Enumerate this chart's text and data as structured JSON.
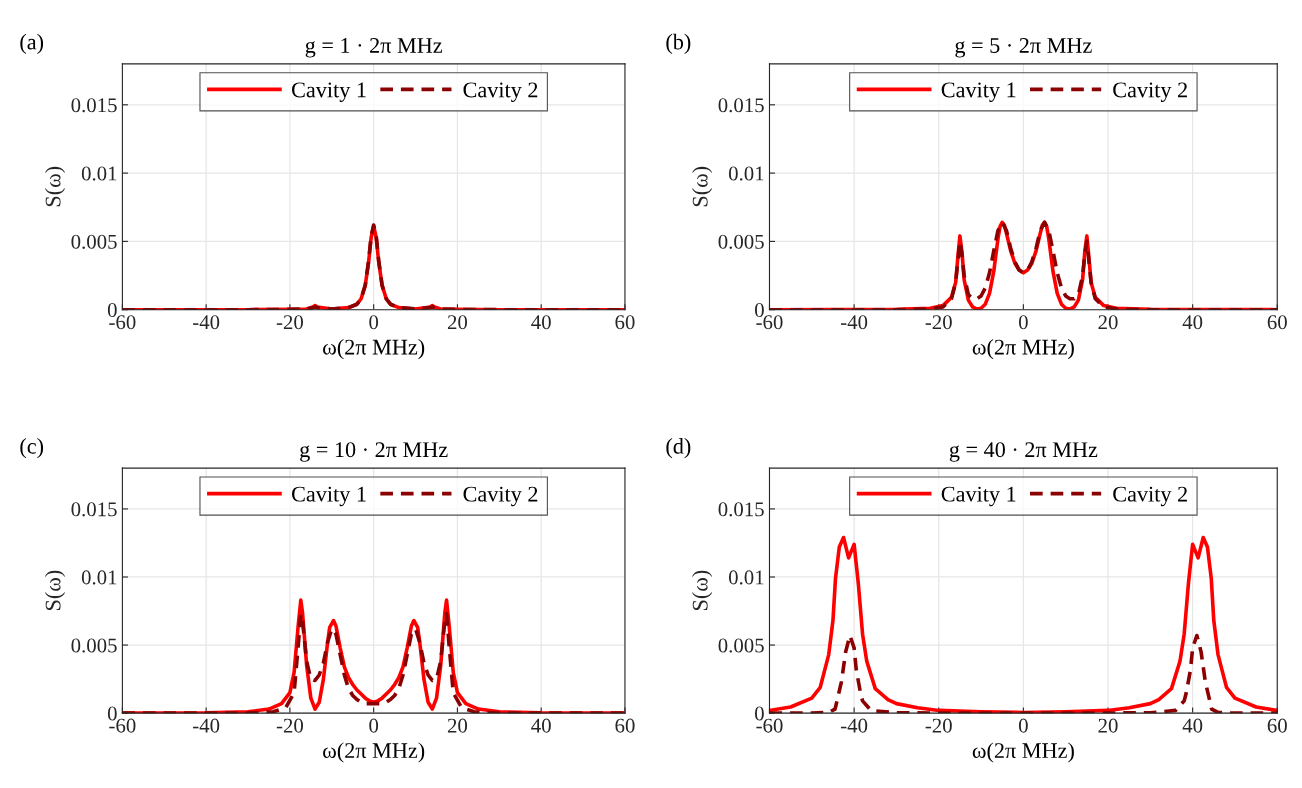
{
  "chart_data": [
    {
      "type": "line",
      "title": "g = 1 · 2π MHz",
      "xlabel": "ω(2π MHz)",
      "ylabel": "S(ω)",
      "annotations": [
        "(a)"
      ],
      "xlim": [
        -60,
        60
      ],
      "ylim": [
        0,
        0.018
      ],
      "xticks": [
        -60,
        -40,
        -20,
        0,
        20,
        40,
        60
      ],
      "yticks": [
        0,
        0.005,
        0.01,
        0.015
      ],
      "grid": true,
      "legend": "top",
      "series": [
        {
          "name": "Cavity 1",
          "color": "#ff0000",
          "line_style": "solid",
          "x": [
            -60,
            -30,
            -20,
            -16,
            -14.5,
            -14,
            -13.5,
            -10,
            -6,
            -4,
            -3,
            -2,
            -1.2,
            -0.6,
            0,
            0.6,
            1.2,
            2,
            3,
            4,
            6,
            10,
            13.5,
            14,
            14.5,
            16,
            20,
            30,
            60
          ],
          "values": [
            0,
            0,
            2e-05,
            5e-05,
            0.0002,
            0.0003,
            0.0002,
            5e-05,
            0.00015,
            0.0004,
            0.0008,
            0.0018,
            0.0035,
            0.0053,
            0.0061,
            0.0053,
            0.0035,
            0.0018,
            0.0008,
            0.0004,
            0.00015,
            5e-05,
            0.0002,
            0.0003,
            0.0002,
            5e-05,
            2e-05,
            0,
            0
          ]
        },
        {
          "name": "Cavity 2",
          "color": "#8b0000",
          "line_style": "dashed",
          "x": [
            -60,
            -30,
            -20,
            -16,
            -14.5,
            -14,
            -13.5,
            -10,
            -6,
            -4,
            -3,
            -2,
            -1.2,
            -0.6,
            0,
            0.6,
            1.2,
            2,
            3,
            4,
            6,
            10,
            13.5,
            14,
            14.5,
            16,
            20,
            30,
            60
          ],
          "values": [
            0,
            0,
            2e-05,
            5e-05,
            0.00015,
            0.0002,
            0.00015,
            5e-05,
            0.00015,
            0.0004,
            0.0008,
            0.0018,
            0.0036,
            0.0054,
            0.0062,
            0.0054,
            0.0036,
            0.0018,
            0.0008,
            0.0004,
            0.00015,
            5e-05,
            0.00015,
            0.0002,
            0.00015,
            5e-05,
            2e-05,
            0,
            0
          ]
        }
      ]
    },
    {
      "type": "line",
      "title": "g = 5 · 2π MHz",
      "xlabel": "ω(2π MHz)",
      "ylabel": "S(ω)",
      "annotations": [
        "(b)"
      ],
      "xlim": [
        -60,
        60
      ],
      "ylim": [
        0,
        0.018
      ],
      "xticks": [
        -60,
        -40,
        -20,
        0,
        20,
        40,
        60
      ],
      "yticks": [
        0,
        0.005,
        0.01,
        0.015
      ],
      "grid": true,
      "legend": "top",
      "series": [
        {
          "name": "Cavity 1",
          "color": "#ff0000",
          "line_style": "solid",
          "x": [
            -60,
            -30,
            -22,
            -19,
            -17,
            -16,
            -15.5,
            -15,
            -14.5,
            -14,
            -13,
            -12,
            -11,
            -10,
            -9,
            -8,
            -7,
            -6,
            -5.5,
            -5,
            -4.5,
            -4,
            -3,
            -2,
            -1,
            0,
            1,
            2,
            3,
            4,
            4.5,
            5,
            5.5,
            6,
            7,
            8,
            9,
            10,
            11,
            12,
            13,
            14,
            14.5,
            15,
            15.5,
            16,
            17,
            19,
            22,
            30,
            60
          ],
          "values": [
            0,
            2e-05,
            0.0001,
            0.0003,
            0.0009,
            0.002,
            0.0038,
            0.0054,
            0.0042,
            0.0022,
            0.0007,
            0.0002,
            5e-05,
            0.0001,
            0.0004,
            0.0012,
            0.0028,
            0.0052,
            0.0061,
            0.0064,
            0.0062,
            0.0056,
            0.0043,
            0.0034,
            0.0029,
            0.0027,
            0.0029,
            0.0034,
            0.0043,
            0.0056,
            0.0062,
            0.0064,
            0.0061,
            0.0052,
            0.0028,
            0.0012,
            0.0004,
            0.0001,
            5e-05,
            0.0002,
            0.0007,
            0.0022,
            0.0042,
            0.0054,
            0.0038,
            0.002,
            0.0009,
            0.0003,
            0.0001,
            2e-05,
            0
          ]
        },
        {
          "name": "Cavity 2",
          "color": "#8b0000",
          "line_style": "dashed",
          "x": [
            -60,
            -30,
            -22,
            -19,
            -17,
            -16,
            -15,
            -14.5,
            -14,
            -13,
            -12,
            -11,
            -10,
            -9,
            -8,
            -7,
            -6,
            -5,
            -4,
            -3,
            -2,
            -1,
            0,
            1,
            2,
            3,
            4,
            5,
            6,
            7,
            8,
            9,
            10,
            11,
            12,
            13,
            14,
            14.5,
            15,
            16,
            17,
            19,
            22,
            30,
            60
          ],
          "values": [
            0,
            0,
            5e-05,
            0.0002,
            0.0008,
            0.002,
            0.005,
            0.004,
            0.0025,
            0.0011,
            0.0008,
            0.0008,
            0.001,
            0.0016,
            0.0027,
            0.0043,
            0.0058,
            0.0064,
            0.0058,
            0.0045,
            0.0035,
            0.0029,
            0.0027,
            0.0029,
            0.0035,
            0.0045,
            0.0058,
            0.0064,
            0.0058,
            0.0043,
            0.0027,
            0.0016,
            0.001,
            0.0008,
            0.0008,
            0.0011,
            0.0025,
            0.004,
            0.005,
            0.002,
            0.0008,
            0.0002,
            5e-05,
            0,
            0
          ]
        }
      ]
    },
    {
      "type": "line",
      "title": "g = 10 · 2π MHz",
      "xlabel": "ω(2π MHz)",
      "ylabel": "S(ω)",
      "annotations": [
        "(c)"
      ],
      "xlim": [
        -60,
        60
      ],
      "ylim": [
        0,
        0.018
      ],
      "xticks": [
        -60,
        -40,
        -20,
        0,
        20,
        40,
        60
      ],
      "yticks": [
        0,
        0.005,
        0.01,
        0.015
      ],
      "grid": true,
      "legend": "top",
      "series": [
        {
          "name": "Cavity 1",
          "color": "#ff0000",
          "line_style": "solid",
          "x": [
            -60,
            -40,
            -30,
            -25,
            -22,
            -20,
            -19,
            -18,
            -17.4,
            -17,
            -16,
            -15,
            -14,
            -13,
            -12,
            -11,
            -10.5,
            -9.6,
            -9,
            -8,
            -7,
            -6,
            -5,
            -4,
            -3,
            -2,
            -1,
            0,
            1,
            2,
            3,
            4,
            5,
            6,
            7,
            8,
            9,
            9.6,
            10.5,
            11,
            12,
            13,
            14,
            15,
            16,
            17,
            17.4,
            18,
            19,
            20,
            22,
            25,
            30,
            40,
            60
          ],
          "values": [
            0,
            2e-05,
            0.0001,
            0.0003,
            0.0007,
            0.0015,
            0.003,
            0.0065,
            0.0083,
            0.0074,
            0.0035,
            0.0011,
            0.0003,
            0.0008,
            0.0025,
            0.0052,
            0.0063,
            0.0068,
            0.0064,
            0.0048,
            0.0034,
            0.0026,
            0.0021,
            0.0017,
            0.0014,
            0.0011,
            0.0009,
            0.0008,
            0.0009,
            0.0011,
            0.0014,
            0.0017,
            0.0021,
            0.0026,
            0.0034,
            0.0048,
            0.0064,
            0.0068,
            0.0063,
            0.0052,
            0.0025,
            0.0008,
            0.0003,
            0.0011,
            0.0035,
            0.0074,
            0.0083,
            0.0065,
            0.003,
            0.0015,
            0.0007,
            0.0003,
            0.0001,
            2e-05,
            0
          ]
        },
        {
          "name": "Cavity 2",
          "color": "#8b0000",
          "line_style": "dashed",
          "x": [
            -60,
            -30,
            -24,
            -21,
            -19,
            -18,
            -17.4,
            -17,
            -16,
            -15,
            -14,
            -13,
            -12,
            -11,
            -10,
            -9,
            -8,
            -7,
            -6,
            -5,
            -4,
            -3,
            -2,
            -1,
            0,
            1,
            2,
            3,
            4,
            5,
            6,
            7,
            8,
            9,
            10,
            11,
            12,
            13,
            14,
            15,
            16,
            17,
            17.4,
            18,
            19,
            21,
            24,
            30,
            60
          ],
          "values": [
            0,
            0,
            0.0001,
            0.0004,
            0.0015,
            0.005,
            0.0073,
            0.0068,
            0.0038,
            0.0025,
            0.0024,
            0.0028,
            0.0037,
            0.0052,
            0.0062,
            0.0058,
            0.0043,
            0.0028,
            0.0018,
            0.0013,
            0.001,
            0.0008,
            0.0007,
            0.0007,
            0.0007,
            0.0007,
            0.0007,
            0.0008,
            0.001,
            0.0013,
            0.0018,
            0.0028,
            0.0043,
            0.0058,
            0.0062,
            0.0052,
            0.0037,
            0.0028,
            0.0024,
            0.0025,
            0.0038,
            0.0068,
            0.0073,
            0.005,
            0.0015,
            0.0004,
            0.0001,
            0,
            0
          ]
        }
      ]
    },
    {
      "type": "line",
      "title": "g = 40 · 2π MHz",
      "xlabel": "ω(2π MHz)",
      "ylabel": "S(ω)",
      "annotations": [
        "(d)"
      ],
      "xlim": [
        -60,
        60
      ],
      "ylim": [
        0,
        0.018
      ],
      "xticks": [
        -60,
        -40,
        -20,
        0,
        20,
        40,
        60
      ],
      "yticks": [
        0,
        0.005,
        0.01,
        0.015
      ],
      "grid": true,
      "legend": "top",
      "series": [
        {
          "name": "Cavity 1",
          "color": "#ff0000",
          "line_style": "solid",
          "x": [
            -60,
            -55,
            -50,
            -48,
            -46,
            -45,
            -44.4,
            -43.5,
            -42.5,
            -41.3,
            -40,
            -39,
            -38,
            -37,
            -35,
            -32,
            -30,
            -25,
            -20,
            -10,
            0,
            10,
            20,
            25,
            30,
            32,
            35,
            37,
            38,
            39,
            40,
            41.3,
            42.5,
            43.5,
            44.4,
            45,
            46,
            48,
            50,
            55,
            60
          ],
          "values": [
            0.0002,
            0.00045,
            0.0011,
            0.0019,
            0.0043,
            0.0068,
            0.0099,
            0.0122,
            0.0129,
            0.0114,
            0.0124,
            0.0095,
            0.0058,
            0.0038,
            0.0018,
            0.001,
            0.0007,
            0.0004,
            0.0002,
            0.0001,
            5e-05,
            0.0001,
            0.0002,
            0.0004,
            0.0007,
            0.001,
            0.0018,
            0.0038,
            0.0058,
            0.0095,
            0.0124,
            0.0114,
            0.0129,
            0.0122,
            0.0099,
            0.0068,
            0.0043,
            0.0019,
            0.0011,
            0.00045,
            0.0002
          ]
        },
        {
          "name": "Cavity 2",
          "color": "#8b0000",
          "line_style": "dashed",
          "x": [
            -60,
            -50,
            -46,
            -44.5,
            -43,
            -42,
            -41,
            -40,
            -39.5,
            -38.5,
            -38,
            -36,
            -30,
            0,
            30,
            36,
            38,
            38.5,
            39.5,
            40,
            41,
            42,
            43,
            44.5,
            46,
            50,
            60
          ],
          "values": [
            0,
            0,
            5e-05,
            0.0003,
            0.0023,
            0.0045,
            0.0057,
            0.0048,
            0.0032,
            0.0015,
            0.0009,
            0.0002,
            2e-05,
            0,
            2e-05,
            0.0002,
            0.0009,
            0.0015,
            0.0032,
            0.0048,
            0.0057,
            0.0045,
            0.0023,
            0.0003,
            5e-05,
            0,
            0
          ]
        }
      ]
    }
  ]
}
